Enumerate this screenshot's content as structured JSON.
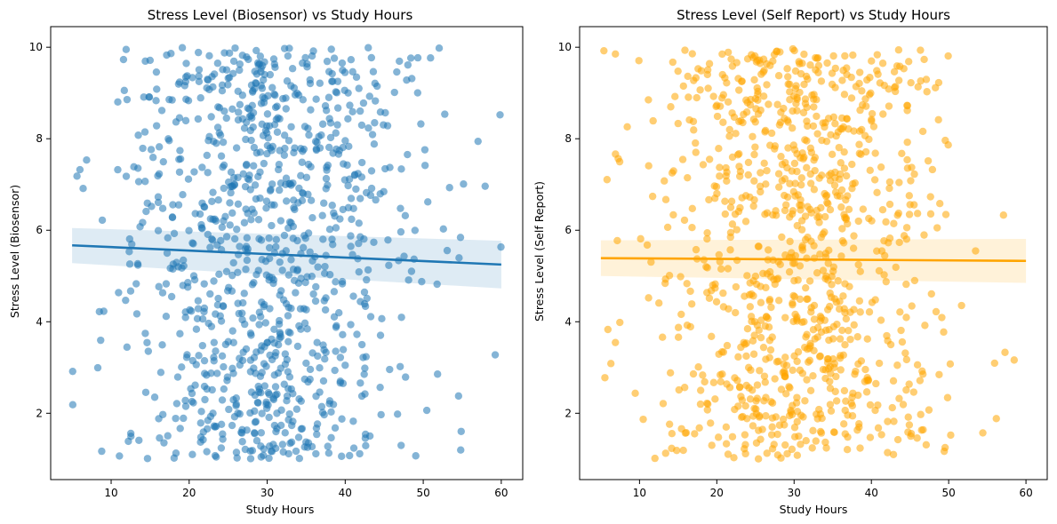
{
  "chart_data": [
    {
      "type": "scatter",
      "title": "Stress Level (Biosensor) vs Study Hours",
      "xlabel": "Study Hours",
      "ylabel": "Stress Level (Biosensor)",
      "xlim": [
        2.25,
        62.75
      ],
      "ylim": [
        0.55,
        10.45
      ],
      "xticks": [
        10,
        20,
        30,
        40,
        50,
        60
      ],
      "yticks": [
        2,
        4,
        6,
        8,
        10
      ],
      "grid": false,
      "color": "#1f77b4",
      "point_count": 1000,
      "x_range": [
        5,
        60
      ],
      "y_range": [
        1,
        10
      ],
      "regression": {
        "x": [
          5,
          60
        ],
        "y": [
          5.67,
          5.25
        ],
        "ci_lower": [
          5.28,
          4.73
        ],
        "ci_upper": [
          6.05,
          5.77
        ]
      }
    },
    {
      "type": "scatter",
      "title": "Stress Level (Self Report) vs Study Hours",
      "xlabel": "Study Hours",
      "ylabel": "Stress Level (Self Report)",
      "xlim": [
        2.25,
        62.75
      ],
      "ylim": [
        0.55,
        10.45
      ],
      "xticks": [
        10,
        20,
        30,
        40,
        50,
        60
      ],
      "yticks": [
        2,
        4,
        6,
        8,
        10
      ],
      "grid": false,
      "color": "#ffa500",
      "point_count": 1000,
      "x_range": [
        5,
        60
      ],
      "y_range": [
        1,
        10
      ],
      "regression": {
        "x": [
          5,
          60
        ],
        "y": [
          5.39,
          5.33
        ],
        "ci_lower": [
          5.0,
          4.85
        ],
        "ci_upper": [
          5.78,
          5.81
        ]
      }
    }
  ]
}
